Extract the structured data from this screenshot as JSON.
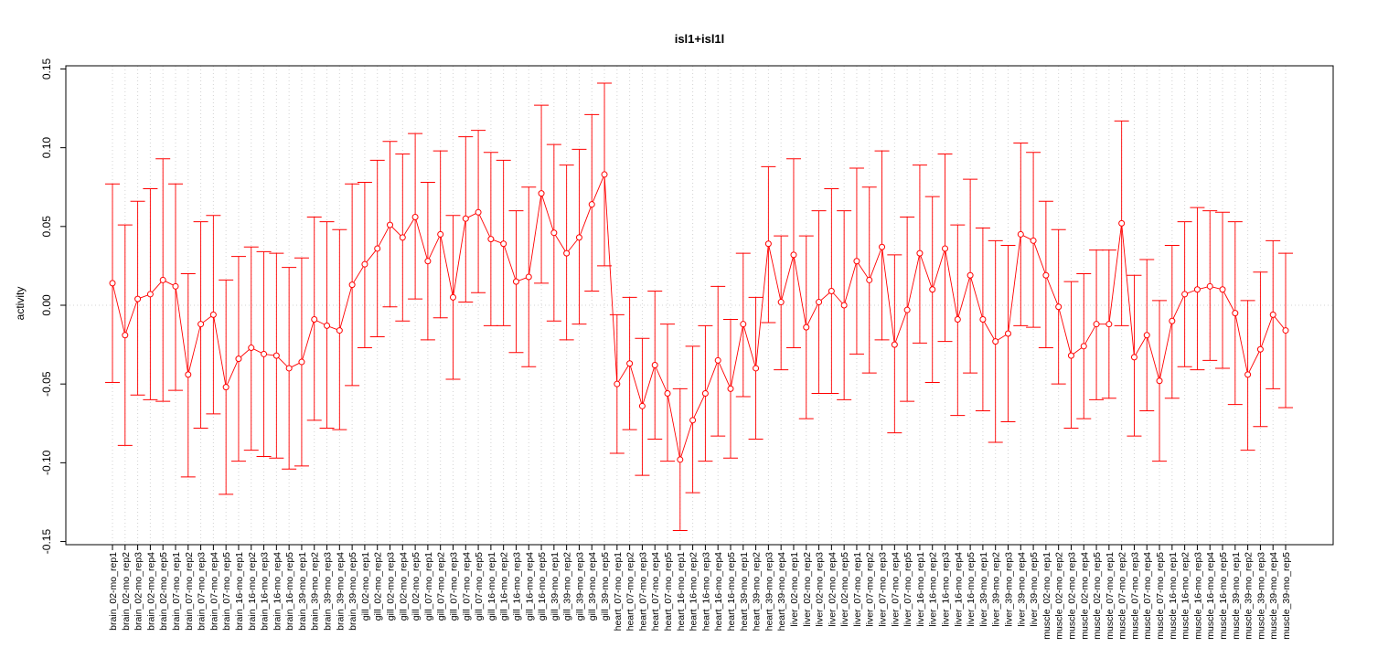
{
  "chart_data": {
    "type": "line",
    "title": "isl1+isl1l",
    "xlabel": "",
    "ylabel": "activity",
    "ylim": [
      -0.152,
      0.152
    ],
    "yticks": [
      "0.15",
      "0.10",
      "0.05",
      "0.00",
      "-0.05",
      "-0.10",
      "-0.15"
    ],
    "ytick_values": [
      0.15,
      0.1,
      0.05,
      0.0,
      -0.05,
      -0.1,
      -0.15
    ],
    "grid": true,
    "color": "#ff0000",
    "categories": [
      "brain_02-mo_rep1",
      "brain_02-mo_rep2",
      "brain_02-mo_rep3",
      "brain_02-mo_rep4",
      "brain_02-mo_rep5",
      "brain_07-mo_rep1",
      "brain_07-mo_rep2",
      "brain_07-mo_rep3",
      "brain_07-mo_rep4",
      "brain_07-mo_rep5",
      "brain_16-mo_rep1",
      "brain_16-mo_rep2",
      "brain_16-mo_rep3",
      "brain_16-mo_rep4",
      "brain_16-mo_rep5",
      "brain_39-mo_rep1",
      "brain_39-mo_rep2",
      "brain_39-mo_rep3",
      "brain_39-mo_rep4",
      "brain_39-mo_rep5",
      "gill_02-mo_rep1",
      "gill_02-mo_rep2",
      "gill_02-mo_rep3",
      "gill_02-mo_rep4",
      "gill_02-mo_rep5",
      "gill_07-mo_rep1",
      "gill_07-mo_rep2",
      "gill_07-mo_rep3",
      "gill_07-mo_rep4",
      "gill_07-mo_rep5",
      "gill_16-mo_rep1",
      "gill_16-mo_rep2",
      "gill_16-mo_rep3",
      "gill_16-mo_rep4",
      "gill_16-mo_rep5",
      "gill_39-mo_rep1",
      "gill_39-mo_rep2",
      "gill_39-mo_rep3",
      "gill_39-mo_rep4",
      "gill_39-mo_rep5",
      "heart_07-mo_rep1",
      "heart_07-mo_rep2",
      "heart_07-mo_rep3",
      "heart_07-mo_rep4",
      "heart_07-mo_rep5",
      "heart_16-mo_rep1",
      "heart_16-mo_rep2",
      "heart_16-mo_rep3",
      "heart_16-mo_rep4",
      "heart_16-mo_rep5",
      "heart_39-mo_rep1",
      "heart_39-mo_rep2",
      "heart_39-mo_rep3",
      "heart_39-mo_rep4",
      "liver_02-mo_rep1",
      "liver_02-mo_rep2",
      "liver_02-mo_rep3",
      "liver_02-mo_rep4",
      "liver_02-mo_rep5",
      "liver_07-mo_rep1",
      "liver_07-mo_rep2",
      "liver_07-mo_rep3",
      "liver_07-mo_rep4",
      "liver_07-mo_rep5",
      "liver_16-mo_rep1",
      "liver_16-mo_rep2",
      "liver_16-mo_rep3",
      "liver_16-mo_rep4",
      "liver_16-mo_rep5",
      "liver_39-mo_rep1",
      "liver_39-mo_rep2",
      "liver_39-mo_rep3",
      "liver_39-mo_rep4",
      "liver_39-mo_rep5",
      "muscle_02-mo_rep1",
      "muscle_02-mo_rep2",
      "muscle_02-mo_rep3",
      "muscle_02-mo_rep4",
      "muscle_02-mo_rep5",
      "muscle_07-mo_rep1",
      "muscle_07-mo_rep2",
      "muscle_07-mo_rep3",
      "muscle_07-mo_rep4",
      "muscle_07-mo_rep5",
      "muscle_16-mo_rep1",
      "muscle_16-mo_rep2",
      "muscle_16-mo_rep3",
      "muscle_16-mo_rep4",
      "muscle_16-mo_rep5",
      "muscle_39-mo_rep1",
      "muscle_39-mo_rep2",
      "muscle_39-mo_rep3",
      "muscle_39-mo_rep4",
      "muscle_39-mo_rep5"
    ],
    "values": [
      0.014,
      -0.019,
      0.004,
      0.007,
      0.016,
      0.012,
      -0.044,
      -0.012,
      -0.006,
      -0.052,
      -0.034,
      -0.027,
      -0.031,
      -0.032,
      -0.04,
      -0.036,
      -0.009,
      -0.013,
      -0.016,
      0.013,
      0.026,
      0.036,
      0.051,
      0.043,
      0.056,
      0.028,
      0.045,
      0.005,
      0.055,
      0.059,
      0.042,
      0.039,
      0.015,
      0.018,
      0.071,
      0.046,
      0.033,
      0.043,
      0.064,
      0.083,
      -0.05,
      -0.037,
      -0.064,
      -0.038,
      -0.056,
      -0.098,
      -0.073,
      -0.056,
      -0.035,
      -0.053,
      -0.012,
      -0.04,
      0.039,
      0.002,
      0.032,
      -0.014,
      0.002,
      0.009,
      0.0,
      0.028,
      0.016,
      0.037,
      -0.025,
      -0.003,
      0.033,
      0.01,
      0.036,
      -0.009,
      0.019,
      -0.009,
      -0.023,
      -0.018,
      0.045,
      0.041,
      0.019,
      -0.001,
      -0.032,
      -0.026,
      -0.012,
      -0.012,
      0.052,
      -0.033,
      -0.019,
      -0.048,
      -0.01,
      0.007,
      0.01,
      0.012,
      0.01,
      -0.005,
      -0.044,
      -0.028,
      -0.006,
      -0.016
    ],
    "upper": [
      0.077,
      0.051,
      0.066,
      0.074,
      0.093,
      0.077,
      0.02,
      0.053,
      0.057,
      0.016,
      0.031,
      0.037,
      0.034,
      0.033,
      0.024,
      0.03,
      0.056,
      0.053,
      0.048,
      0.077,
      0.078,
      0.092,
      0.104,
      0.096,
      0.109,
      0.078,
      0.098,
      0.057,
      0.107,
      0.111,
      0.097,
      0.092,
      0.06,
      0.075,
      0.127,
      0.102,
      0.089,
      0.099,
      0.121,
      0.141,
      -0.006,
      0.005,
      -0.021,
      0.009,
      -0.012,
      -0.053,
      -0.026,
      -0.013,
      0.012,
      -0.009,
      0.033,
      0.005,
      0.088,
      0.044,
      0.093,
      0.044,
      0.06,
      0.074,
      0.06,
      0.087,
      0.075,
      0.098,
      0.032,
      0.056,
      0.089,
      0.069,
      0.096,
      0.051,
      0.08,
      0.049,
      0.041,
      0.038,
      0.103,
      0.097,
      0.066,
      0.048,
      0.015,
      0.02,
      0.035,
      0.035,
      0.117,
      0.019,
      0.029,
      0.003,
      0.038,
      0.053,
      0.062,
      0.06,
      0.059,
      0.053,
      0.003,
      0.021,
      0.041,
      0.033
    ],
    "lower": [
      -0.049,
      -0.089,
      -0.057,
      -0.06,
      -0.061,
      -0.054,
      -0.109,
      -0.078,
      -0.069,
      -0.12,
      -0.099,
      -0.092,
      -0.096,
      -0.097,
      -0.104,
      -0.102,
      -0.073,
      -0.078,
      -0.079,
      -0.051,
      -0.027,
      -0.02,
      -0.001,
      -0.01,
      0.004,
      -0.022,
      -0.008,
      -0.047,
      0.002,
      0.008,
      -0.013,
      -0.013,
      -0.03,
      -0.039,
      0.014,
      -0.01,
      -0.022,
      -0.012,
      0.009,
      0.025,
      -0.094,
      -0.079,
      -0.108,
      -0.085,
      -0.099,
      -0.143,
      -0.119,
      -0.099,
      -0.083,
      -0.097,
      -0.058,
      -0.085,
      -0.011,
      -0.041,
      -0.027,
      -0.072,
      -0.056,
      -0.056,
      -0.06,
      -0.031,
      -0.043,
      -0.022,
      -0.081,
      -0.061,
      -0.024,
      -0.049,
      -0.023,
      -0.07,
      -0.043,
      -0.067,
      -0.087,
      -0.074,
      -0.013,
      -0.014,
      -0.027,
      -0.05,
      -0.078,
      -0.072,
      -0.06,
      -0.059,
      -0.013,
      -0.083,
      -0.067,
      -0.099,
      -0.059,
      -0.039,
      -0.041,
      -0.035,
      -0.04,
      -0.063,
      -0.092,
      -0.077,
      -0.053,
      -0.065
    ]
  }
}
